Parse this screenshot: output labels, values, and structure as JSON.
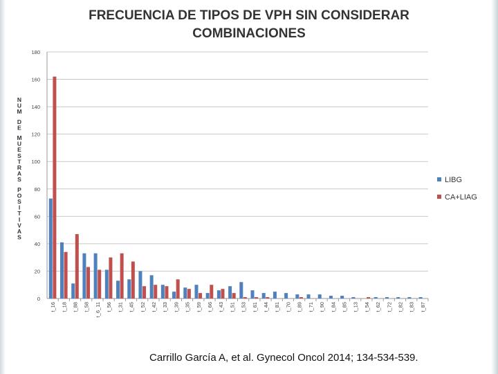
{
  "slide": {
    "citation": "Carrillo García A, et al. Gynecol Oncol 2014; 134-534-539."
  },
  "chart_data": {
    "type": "bar",
    "title": "FRECUENCIA DE TIPOS DE VPH SIN CONSIDERAR\nCOMBINACIONES",
    "ylabel": "NUM DE MUESTRAS POSITIVAS",
    "xlabel": "",
    "ylim": [
      0,
      180
    ],
    "yticks": [
      0,
      20,
      40,
      60,
      80,
      100,
      120,
      140,
      160,
      180
    ],
    "grid": true,
    "legend_position": "right",
    "categories": [
      "t_16",
      "t_18",
      "t_88",
      "t_58",
      "t_6_11",
      "t_56",
      "t_31",
      "t_45",
      "t_52",
      "t_42",
      "t_33",
      "t_39",
      "t_35",
      "t_59",
      "t_66",
      "t_43",
      "t_51",
      "t_53",
      "t_61",
      "t_44",
      "t_81",
      "t_70",
      "t_89",
      "t_71",
      "t_90",
      "t_84",
      "t_85",
      "t_13",
      "t_54",
      "t_62",
      "t_72",
      "t_82",
      "t_83",
      "t_87"
    ],
    "series": [
      {
        "name": "LIBG",
        "color": "#4f81bd",
        "values": [
          73,
          41,
          11,
          33,
          33,
          21,
          13,
          14,
          20,
          17,
          10,
          5,
          8,
          10,
          4,
          6,
          9,
          12,
          6,
          4,
          5,
          4,
          3,
          3,
          3,
          2,
          2,
          1,
          0,
          1,
          1,
          1,
          1,
          1
        ]
      },
      {
        "name": "CA+LIAG",
        "color": "#c0504d",
        "values": [
          162,
          34,
          47,
          23,
          21,
          30,
          33,
          27,
          9,
          10,
          9,
          14,
          7,
          4,
          10,
          7,
          4,
          1,
          1,
          1,
          0,
          0,
          1,
          0,
          0,
          0,
          0,
          0,
          1,
          0,
          0,
          0,
          0,
          0
        ]
      }
    ]
  }
}
